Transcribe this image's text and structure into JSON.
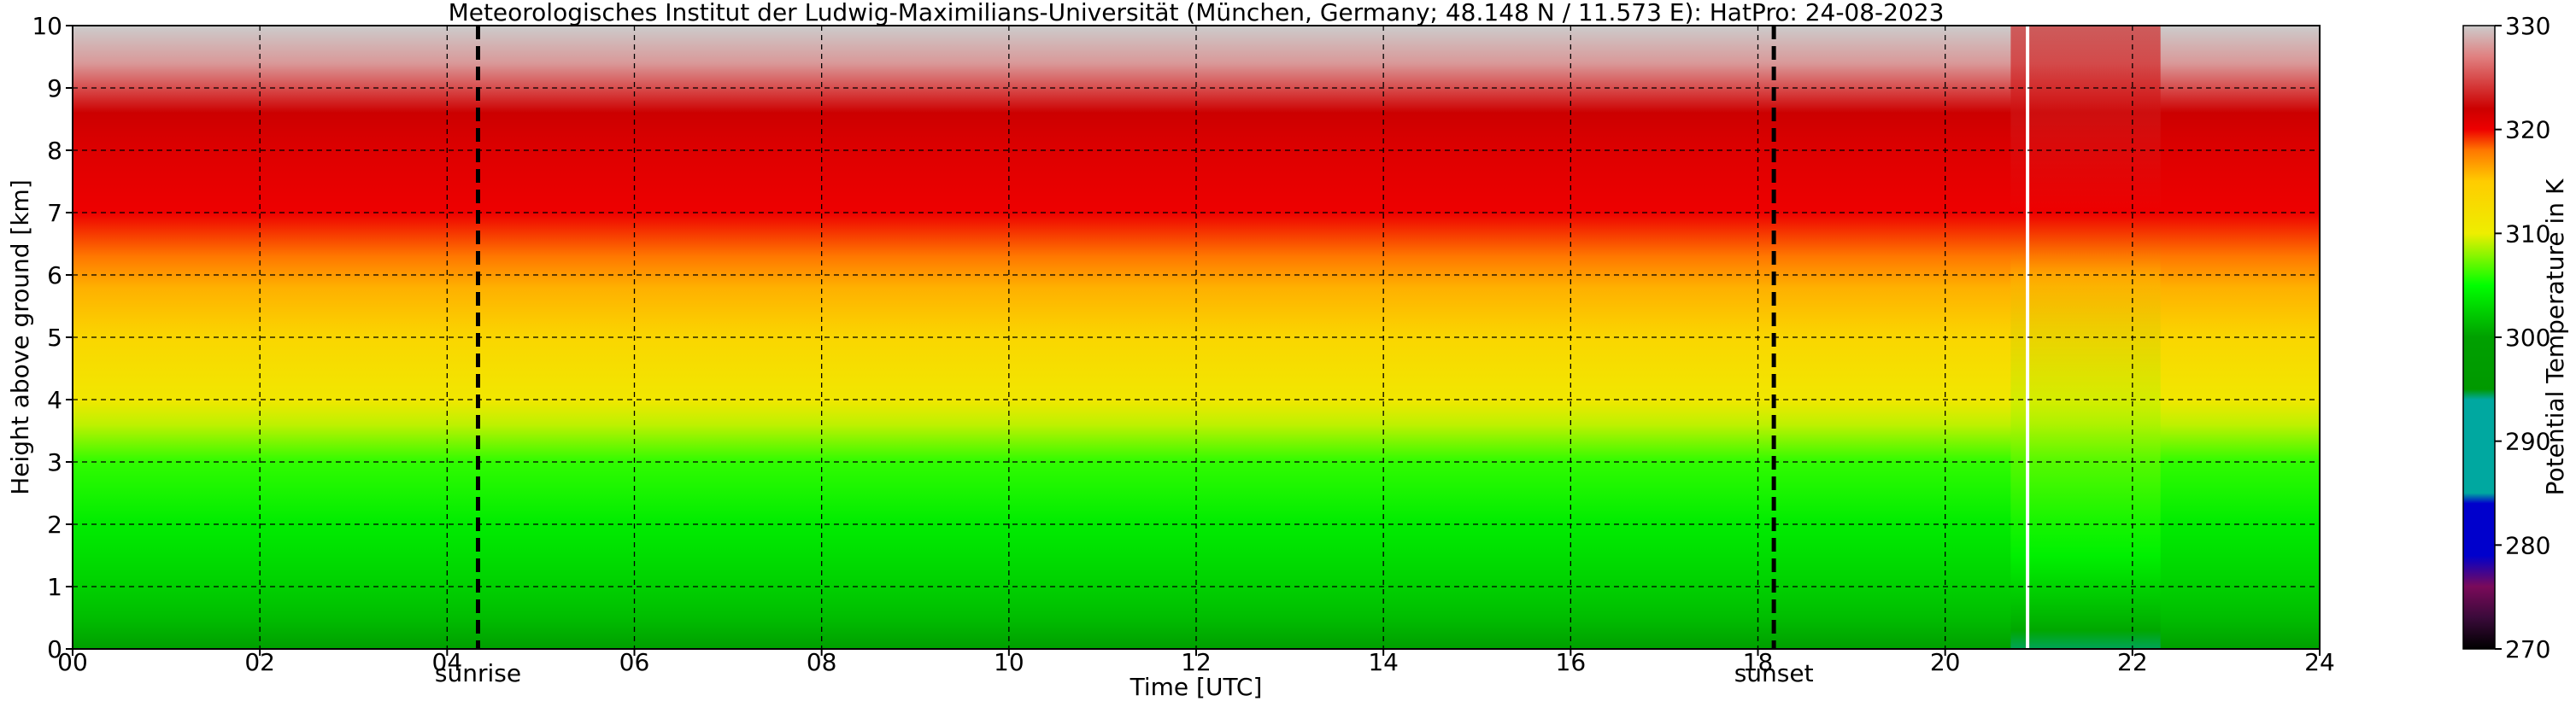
{
  "chart_data": {
    "type": "heatmap",
    "title": "Meteorologisches Institut der Ludwig-Maximilians-Universität (München, Germany; 48.148 N / 11.573 E):    HatPro: 24-08-2023",
    "xlabel": "Time [UTC]",
    "ylabel": "Height above ground [km]",
    "xlim": [
      0,
      24
    ],
    "ylim": [
      0,
      10
    ],
    "x_ticks": [
      "00",
      "02",
      "04",
      "06",
      "08",
      "10",
      "12",
      "14",
      "16",
      "18",
      "20",
      "22",
      "24"
    ],
    "y_ticks": [
      "0",
      "1",
      "2",
      "3",
      "4",
      "5",
      "6",
      "7",
      "8",
      "9",
      "10"
    ],
    "grid": true,
    "colorbar": {
      "label": "Potential Temperature in K",
      "range": [
        270,
        330
      ],
      "ticks": [
        "270",
        "280",
        "290",
        "300",
        "310",
        "320",
        "330"
      ]
    },
    "events": [
      {
        "name": "sunrise",
        "time": 4.33
      },
      {
        "name": "sunset",
        "time": 18.17
      }
    ],
    "anomaly": {
      "start": 20.7,
      "end": 22.3,
      "gap_time": 20.88
    },
    "profile": [
      {
        "height": 0.0,
        "theta": 299.5
      },
      {
        "height": 0.5,
        "theta": 301.5
      },
      {
        "height": 1.0,
        "theta": 302.5
      },
      {
        "height": 2.0,
        "theta": 304.0
      },
      {
        "height": 3.0,
        "theta": 306.0
      },
      {
        "height": 3.6,
        "theta": 309.0
      },
      {
        "height": 4.0,
        "theta": 311.0
      },
      {
        "height": 5.0,
        "theta": 313.5
      },
      {
        "height": 5.8,
        "theta": 316.0
      },
      {
        "height": 6.3,
        "theta": 318.0
      },
      {
        "height": 7.0,
        "theta": 320.0
      },
      {
        "height": 8.0,
        "theta": 321.0
      },
      {
        "height": 8.6,
        "theta": 322.0
      },
      {
        "height": 9.0,
        "theta": 325.0
      },
      {
        "height": 9.4,
        "theta": 328.0
      },
      {
        "height": 10.0,
        "theta": 331.0
      }
    ],
    "colormap": [
      {
        "value": 270,
        "color": "#000000"
      },
      {
        "value": 273,
        "color": "#3a0a3a"
      },
      {
        "value": 276,
        "color": "#7a0a5a"
      },
      {
        "value": 279,
        "color": "#0000cc"
      },
      {
        "value": 284,
        "color": "#0000cc"
      },
      {
        "value": 285,
        "color": "#00a8a0"
      },
      {
        "value": 294,
        "color": "#00a8a0"
      },
      {
        "value": 295,
        "color": "#009900"
      },
      {
        "value": 300,
        "color": "#00a000"
      },
      {
        "value": 305,
        "color": "#00ff00"
      },
      {
        "value": 310,
        "color": "#eeee00"
      },
      {
        "value": 315,
        "color": "#ffcc00"
      },
      {
        "value": 318,
        "color": "#ff7700"
      },
      {
        "value": 320,
        "color": "#ee0000"
      },
      {
        "value": 322,
        "color": "#cc0000"
      },
      {
        "value": 327,
        "color": "#e08080"
      },
      {
        "value": 330,
        "color": "#cccccc"
      }
    ]
  }
}
